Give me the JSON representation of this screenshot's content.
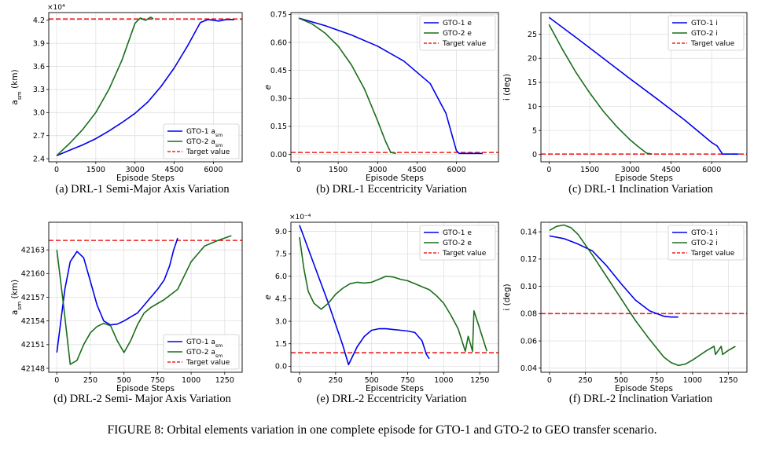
{
  "figure_caption": "FIGURE 8: Orbital elements variation in one complete episode for GTO-1 and GTO-2 to GEO transfer scenario.",
  "colors": {
    "gto1": "#0000ee",
    "gto2": "#1a6e1a",
    "target": "#ee2222",
    "grid": "#e0e0e0"
  },
  "chart_data": [
    {
      "type": "line",
      "caption": "(a)  DRL-1 Semi-Major Axis Variation",
      "ylabel": "a_sm (km)",
      "xlabel": "Episode Steps",
      "y_multiplier": "×10⁴",
      "xlim": [
        -300,
        7100
      ],
      "ylim": [
        2.36,
        4.3
      ],
      "xticks": [
        0,
        1500,
        3000,
        4500,
        6000
      ],
      "xtick_labels": [
        "0",
        "1500",
        "3000",
        "4500",
        "6000"
      ],
      "yticks": [
        2.4,
        2.7,
        3.0,
        3.3,
        3.6,
        3.9,
        4.2
      ],
      "ytick_labels": [
        "2.4",
        "2.7",
        "3.0",
        "3.3",
        "3.6",
        "3.9",
        "4.2"
      ],
      "legend_position": "lower-right",
      "series": [
        {
          "name": "GTO-1 a_sm",
          "color_key": "gto1",
          "x": [
            0,
            500,
            1000,
            1500,
            2000,
            2500,
            3000,
            3500,
            4000,
            4500,
            5000,
            5500,
            5800,
            6000,
            6200,
            6500,
            6800
          ],
          "y": [
            2.44,
            2.51,
            2.58,
            2.66,
            2.76,
            2.87,
            2.99,
            3.14,
            3.34,
            3.58,
            3.86,
            4.17,
            4.21,
            4.2,
            4.19,
            4.21,
            4.21
          ]
        },
        {
          "name": "GTO-2 a_sm",
          "color_key": "gto2",
          "x": [
            0,
            500,
            1000,
            1500,
            2000,
            2500,
            3000,
            3200,
            3400,
            3600,
            3700
          ],
          "y": [
            2.44,
            2.6,
            2.78,
            3.0,
            3.3,
            3.68,
            4.16,
            4.23,
            4.2,
            4.24,
            4.22
          ]
        }
      ],
      "target": {
        "name": "Target value",
        "y": 4.216
      }
    },
    {
      "type": "line",
      "caption": "(b)  DRL-1 Eccentricity Variation",
      "ylabel": "e",
      "xlabel": "Episode Steps",
      "y_multiplier": "",
      "xlim": [
        -300,
        7600
      ],
      "ylim": [
        -0.04,
        0.76
      ],
      "xticks": [
        0,
        1500,
        3000,
        4500,
        6000
      ],
      "xtick_labels": [
        "0",
        "1500",
        "3000",
        "4500",
        "6000"
      ],
      "yticks": [
        0.0,
        0.15,
        0.3,
        0.45,
        0.6,
        0.75
      ],
      "ytick_labels": [
        "0.00",
        "0.15",
        "0.30",
        "0.45",
        "0.60",
        "0.75"
      ],
      "legend_position": "upper-right",
      "series": [
        {
          "name": "GTO-1 e",
          "color_key": "gto1",
          "x": [
            0,
            1000,
            2000,
            3000,
            4000,
            5000,
            5600,
            6000,
            6100,
            6500,
            7000
          ],
          "y": [
            0.73,
            0.69,
            0.64,
            0.58,
            0.5,
            0.38,
            0.22,
            0.02,
            0.005,
            0.005,
            0.005
          ]
        },
        {
          "name": "GTO-2 e",
          "color_key": "gto2",
          "x": [
            0,
            500,
            1000,
            1500,
            2000,
            2500,
            3000,
            3300,
            3500,
            3700
          ],
          "y": [
            0.73,
            0.7,
            0.65,
            0.58,
            0.48,
            0.35,
            0.18,
            0.07,
            0.01,
            0.005
          ]
        }
      ],
      "target": {
        "name": "Target value",
        "y": 0.01
      }
    },
    {
      "type": "line",
      "caption": "(c)  DRL-1 Inclination Variation",
      "ylabel": "i (deg)",
      "xlabel": "Episode Steps",
      "y_multiplier": "",
      "xlim": [
        -300,
        7300
      ],
      "ylim": [
        -1.5,
        29.5
      ],
      "xticks": [
        0,
        1500,
        3000,
        4500,
        6000
      ],
      "xtick_labels": [
        "0",
        "1500",
        "3000",
        "4500",
        "6000"
      ],
      "yticks": [
        0,
        5,
        10,
        15,
        20,
        25
      ],
      "ytick_labels": [
        "0",
        "5",
        "10",
        "15",
        "20",
        "25"
      ],
      "legend_position": "upper-right",
      "series": [
        {
          "name": "GTO-1 i",
          "color_key": "gto1",
          "x": [
            0,
            1000,
            2000,
            3000,
            4000,
            5000,
            6000,
            6200,
            6400,
            7000
          ],
          "y": [
            28.5,
            24.3,
            20.0,
            15.7,
            11.5,
            7.2,
            2.5,
            1.8,
            0.1,
            0.1
          ]
        },
        {
          "name": "GTO-2 i",
          "color_key": "gto2",
          "x": [
            0,
            500,
            1000,
            1500,
            2000,
            2500,
            3000,
            3300,
            3600,
            3800
          ],
          "y": [
            27.0,
            21.8,
            17.0,
            12.8,
            9.0,
            5.8,
            3.0,
            1.6,
            0.3,
            0.1
          ]
        }
      ],
      "target": {
        "name": "Target value",
        "y": 0.1
      }
    },
    {
      "type": "line",
      "caption": "(d)  DRL-2 Semi- Major Axis Variation",
      "ylabel": "a_sm (km)",
      "xlabel": "Episode Steps",
      "y_multiplier": "",
      "xlim": [
        -60,
        1380
      ],
      "ylim": [
        42147.5,
        42166.5
      ],
      "xticks": [
        0,
        250,
        500,
        750,
        1000,
        1250
      ],
      "xtick_labels": [
        "0",
        "250",
        "500",
        "750",
        "1000",
        "1250"
      ],
      "yticks": [
        42148,
        42151,
        42154,
        42157,
        42160,
        42163
      ],
      "ytick_labels": [
        "42148",
        "42151",
        "42154",
        "42157",
        "42160",
        "42163"
      ],
      "legend_position": "lower-right",
      "series": [
        {
          "name": "GTO-1 a_sm",
          "color_key": "gto1",
          "x": [
            0,
            60,
            100,
            150,
            200,
            250,
            300,
            350,
            400,
            450,
            500,
            550,
            600,
            650,
            700,
            750,
            800,
            840,
            870,
            900
          ],
          "y": [
            42150,
            42158,
            42161.5,
            42162.8,
            42162,
            42159,
            42156,
            42154,
            42153.5,
            42153.6,
            42154,
            42154.5,
            42155,
            42156,
            42157,
            42158,
            42159.2,
            42161,
            42163,
            42164.5
          ]
        },
        {
          "name": "GTO-2 a_sm",
          "color_key": "gto2",
          "x": [
            0,
            50,
            100,
            150,
            200,
            250,
            300,
            350,
            400,
            450,
            500,
            550,
            600,
            650,
            700,
            750,
            800,
            900,
            1000,
            1100,
            1200,
            1300
          ],
          "y": [
            42163,
            42156,
            42148.5,
            42149,
            42151,
            42152.5,
            42153.3,
            42153.7,
            42153.4,
            42151.5,
            42150,
            42151.5,
            42153.5,
            42155,
            42155.7,
            42156.2,
            42156.7,
            42158,
            42161.5,
            42163.5,
            42164.2,
            42164.8
          ]
        }
      ],
      "target": {
        "name": "Target value",
        "y": 42164.2
      }
    },
    {
      "type": "line",
      "caption": "(e)  DRL-2 Eccentricity Variation",
      "ylabel": "e",
      "xlabel": "Episode Steps",
      "y_multiplier": "×10⁻⁴",
      "xlim": [
        -60,
        1380
      ],
      "ylim": [
        -0.4,
        9.6
      ],
      "xticks": [
        0,
        250,
        500,
        750,
        1000,
        1250
      ],
      "xtick_labels": [
        "0",
        "250",
        "500",
        "750",
        "1000",
        "1250"
      ],
      "yticks": [
        0.0,
        1.5,
        3.0,
        4.5,
        6.0,
        7.5,
        9.0
      ],
      "ytick_labels": [
        "0.0",
        "1.5",
        "3.0",
        "4.5",
        "6.0",
        "7.5",
        "9.0"
      ],
      "legend_position": "upper-right",
      "series": [
        {
          "name": "GTO-1 e",
          "color_key": "gto1",
          "x": [
            0,
            100,
            200,
            300,
            340,
            400,
            450,
            500,
            550,
            600,
            650,
            700,
            750,
            800,
            850,
            880,
            900
          ],
          "y": [
            9.4,
            6.8,
            4.2,
            1.4,
            0.1,
            1.3,
            2.0,
            2.4,
            2.5,
            2.5,
            2.45,
            2.4,
            2.35,
            2.25,
            1.7,
            0.8,
            0.5
          ]
        },
        {
          "name": "GTO-2 e",
          "color_key": "gto2",
          "x": [
            0,
            30,
            60,
            100,
            150,
            200,
            250,
            300,
            350,
            400,
            450,
            500,
            550,
            600,
            650,
            700,
            750,
            800,
            850,
            900,
            950,
            1000,
            1050,
            1100,
            1150,
            1170,
            1200,
            1210,
            1250,
            1300
          ],
          "y": [
            8.6,
            6.5,
            5.0,
            4.2,
            3.8,
            4.2,
            4.8,
            5.2,
            5.5,
            5.6,
            5.55,
            5.6,
            5.8,
            6.0,
            5.95,
            5.8,
            5.7,
            5.5,
            5.3,
            5.1,
            4.7,
            4.2,
            3.4,
            2.5,
            1.0,
            2.0,
            1.0,
            3.7,
            2.5,
            1.0
          ]
        }
      ],
      "target": {
        "name": "Target value",
        "y": 0.9
      }
    },
    {
      "type": "line",
      "caption": "(f)  DRL-2 Inclination Variation",
      "ylabel": "i (deg)",
      "xlabel": "Episode Steps",
      "y_multiplier": "",
      "xlim": [
        -60,
        1380
      ],
      "ylim": [
        0.037,
        0.147
      ],
      "xticks": [
        0,
        250,
        500,
        750,
        1000,
        1250
      ],
      "xtick_labels": [
        "0",
        "250",
        "500",
        "750",
        "1000",
        "1250"
      ],
      "yticks": [
        0.04,
        0.06,
        0.08,
        0.1,
        0.12,
        0.14
      ],
      "ytick_labels": [
        "0.04",
        "0.06",
        "0.08",
        "0.10",
        "0.12",
        "0.14"
      ],
      "legend_position": "upper-right",
      "series": [
        {
          "name": "GTO-1 i",
          "color_key": "gto1",
          "x": [
            0,
            100,
            200,
            300,
            400,
            500,
            600,
            700,
            800,
            850,
            900
          ],
          "y": [
            0.137,
            0.135,
            0.131,
            0.126,
            0.115,
            0.102,
            0.09,
            0.082,
            0.078,
            0.0775,
            0.0775
          ]
        },
        {
          "name": "GTO-2 i",
          "color_key": "gto2",
          "x": [
            0,
            50,
            100,
            150,
            200,
            300,
            400,
            500,
            600,
            700,
            800,
            850,
            900,
            950,
            1000,
            1100,
            1150,
            1160,
            1200,
            1210,
            1250,
            1300
          ],
          "y": [
            0.141,
            0.144,
            0.145,
            0.143,
            0.138,
            0.123,
            0.107,
            0.091,
            0.075,
            0.061,
            0.048,
            0.044,
            0.042,
            0.043,
            0.046,
            0.053,
            0.056,
            0.05,
            0.056,
            0.05,
            0.053,
            0.056
          ]
        }
      ],
      "target": {
        "name": "Target value",
        "y": 0.08
      }
    }
  ]
}
